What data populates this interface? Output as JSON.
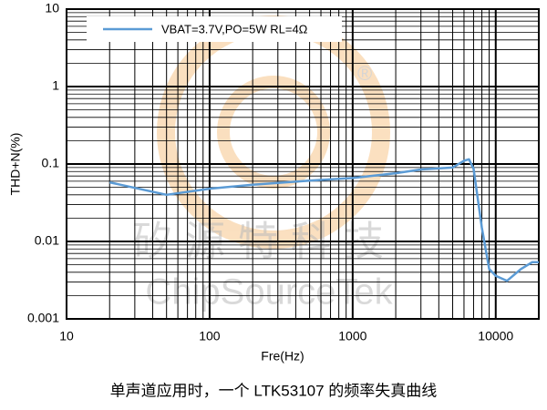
{
  "chart_data": {
    "type": "line",
    "caption": "单声道应用时，一个 LTK53107 的频率失真曲线",
    "xlabel": "Fre(Hz)",
    "ylabel": "THD+N(%)",
    "xscale": "log",
    "yscale": "log",
    "grid": true,
    "minor_grid": true,
    "legend": "upper left",
    "xlim": [
      10,
      20000
    ],
    "ylim": [
      0.001,
      10
    ],
    "xticks": [
      10,
      100,
      1000,
      10000
    ],
    "yticks": [
      0.001,
      0.01,
      0.1,
      1,
      10
    ],
    "watermark": [
      "矽源特科技",
      "ChipSourceTek"
    ],
    "x": [
      20,
      50,
      100,
      200,
      500,
      1000,
      2000,
      3000,
      5000,
      6000,
      6500,
      7000,
      8000,
      9000,
      10000,
      12000,
      15000,
      18000,
      20000
    ],
    "series": [
      {
        "name": "VBAT=3.7V,PO=5W RL=4Ω",
        "color": "#5b9bd5",
        "values": [
          0.058,
          0.04,
          0.048,
          0.054,
          0.061,
          0.066,
          0.076,
          0.085,
          0.09,
          0.11,
          0.115,
          0.087,
          0.015,
          0.0044,
          0.0036,
          0.0031,
          0.0044,
          0.0054,
          0.0054
        ]
      }
    ]
  }
}
